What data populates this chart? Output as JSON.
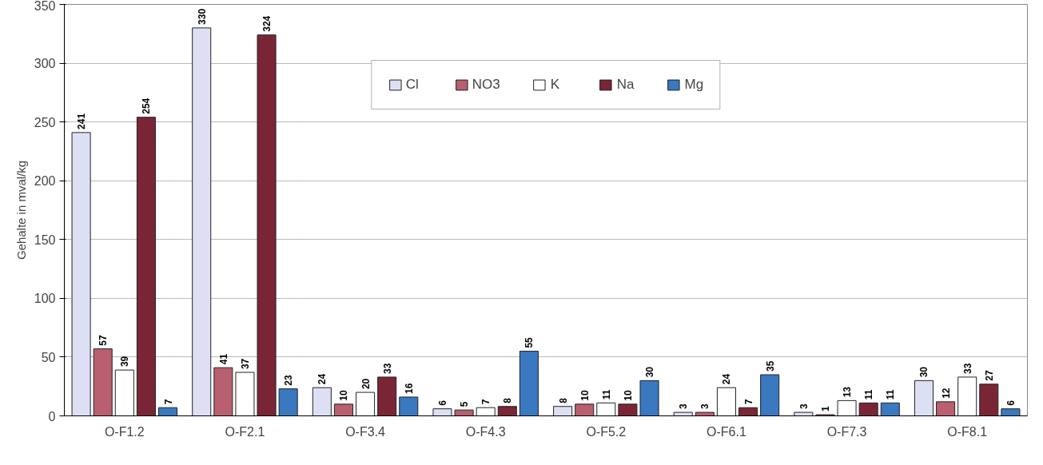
{
  "chart_data": {
    "type": "bar",
    "ylabel": "Gehalte in mval/kg",
    "categories": [
      "O-F1.2",
      "O-F2.1",
      "O-F3.4",
      "O-F4.3",
      "O-F5.2",
      "O-F6.1",
      "O-F7.3",
      "O-F8.1"
    ],
    "series": [
      {
        "name": "Cl",
        "color": "#dde0f5",
        "values": [
          241,
          330,
          24,
          6,
          8,
          3,
          3,
          30
        ]
      },
      {
        "name": "NO3",
        "color": "#b86070",
        "values": [
          57,
          41,
          10,
          5,
          10,
          3,
          1,
          12
        ]
      },
      {
        "name": "K",
        "color": "#ffffff",
        "values": [
          39,
          37,
          20,
          7,
          11,
          24,
          13,
          33
        ]
      },
      {
        "name": "Na",
        "color": "#7a2535",
        "values": [
          254,
          324,
          33,
          8,
          10,
          7,
          11,
          27
        ]
      },
      {
        "name": "Mg",
        "color": "#3a78c0",
        "values": [
          7,
          23,
          16,
          55,
          30,
          35,
          11,
          6
        ]
      }
    ],
    "ylim": [
      0,
      350
    ],
    "yticks": [
      0,
      50,
      100,
      150,
      200,
      250,
      300,
      350
    ],
    "grid": "y",
    "legend": "top",
    "data_labels": true
  }
}
